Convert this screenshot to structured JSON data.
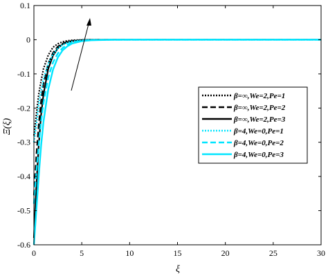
{
  "chart_data": {
    "type": "line",
    "xlabel": "ξ",
    "ylabel": "Ξ(ξ)",
    "xlim": [
      0,
      30
    ],
    "ylim": [
      -0.6,
      0.1
    ],
    "xticks": [
      "0",
      "5",
      "10",
      "15",
      "20",
      "25",
      "30"
    ],
    "yticks": [
      "0.1",
      "0",
      "-0.1",
      "-0.2",
      "-0.3",
      "-0.4",
      "-0.5",
      "-0.6"
    ],
    "grid": false,
    "legend_position": "right",
    "annotation": "arrow indicating increasing Pe",
    "series": [
      {
        "name": "β=∞,We=2,Pe=1",
        "color": "#000000",
        "dash": "dot",
        "x": [
          0,
          0.25,
          0.5,
          0.75,
          1,
          1.5,
          2,
          2.5,
          3,
          3.5,
          4,
          5,
          6,
          8,
          10,
          15,
          20,
          30
        ],
        "y": [
          -0.28,
          -0.22,
          -0.16,
          -0.12,
          -0.085,
          -0.045,
          -0.022,
          -0.012,
          -0.006,
          -0.003,
          -0.0015,
          -0.0005,
          0,
          0,
          0,
          0,
          0,
          0
        ]
      },
      {
        "name": "β=∞,We=2,Pe=2",
        "color": "#000000",
        "dash": "dash",
        "x": [
          0,
          0.25,
          0.5,
          0.75,
          1,
          1.5,
          2,
          2.5,
          3,
          3.5,
          4,
          5,
          6,
          8,
          10,
          15,
          20,
          30
        ],
        "y": [
          -0.455,
          -0.34,
          -0.25,
          -0.18,
          -0.13,
          -0.07,
          -0.038,
          -0.02,
          -0.011,
          -0.006,
          -0.003,
          -0.001,
          0,
          0,
          0,
          0,
          0,
          0
        ]
      },
      {
        "name": "β=∞,We=2,Pe=3",
        "color": "#000000",
        "dash": "solid",
        "x": [
          0,
          0.25,
          0.5,
          0.75,
          1,
          1.5,
          2,
          2.5,
          3,
          3.5,
          4,
          5,
          6,
          8,
          10,
          15,
          20,
          30
        ],
        "y": [
          -0.58,
          -0.43,
          -0.31,
          -0.22,
          -0.16,
          -0.085,
          -0.046,
          -0.025,
          -0.013,
          -0.007,
          -0.004,
          -0.001,
          0,
          0,
          0,
          0,
          0,
          0
        ]
      },
      {
        "name": "β=4,We=0,Pe=1",
        "color": "#00e5ff",
        "dash": "dot",
        "x": [
          0,
          0.25,
          0.5,
          0.75,
          1,
          1.5,
          2,
          2.5,
          3,
          3.5,
          4,
          5,
          6,
          8,
          10,
          15,
          20,
          30
        ],
        "y": [
          -0.3,
          -0.25,
          -0.19,
          -0.15,
          -0.115,
          -0.07,
          -0.042,
          -0.025,
          -0.015,
          -0.009,
          -0.005,
          -0.002,
          -0.0005,
          0,
          0,
          0,
          0,
          0
        ]
      },
      {
        "name": "β=4,We=0,Pe=2",
        "color": "#00e5ff",
        "dash": "dash",
        "x": [
          0,
          0.25,
          0.5,
          0.75,
          1,
          1.5,
          2,
          2.5,
          3,
          3.5,
          4,
          5,
          6,
          8,
          10,
          15,
          20,
          30
        ],
        "y": [
          -0.48,
          -0.39,
          -0.31,
          -0.24,
          -0.185,
          -0.11,
          -0.066,
          -0.04,
          -0.024,
          -0.014,
          -0.008,
          -0.003,
          -0.001,
          0,
          0,
          0,
          0,
          0
        ]
      },
      {
        "name": "β=4,We=0,Pe=3",
        "color": "#00e5ff",
        "dash": "solid",
        "x": [
          0,
          0.25,
          0.5,
          0.75,
          1,
          1.5,
          2,
          2.5,
          3,
          3.5,
          4,
          5,
          6,
          8,
          10,
          15,
          20,
          30
        ],
        "y": [
          -0.6,
          -0.5,
          -0.4,
          -0.31,
          -0.24,
          -0.145,
          -0.087,
          -0.052,
          -0.031,
          -0.019,
          -0.011,
          -0.004,
          -0.0015,
          -0.0002,
          0,
          0,
          0,
          0
        ]
      }
    ]
  }
}
